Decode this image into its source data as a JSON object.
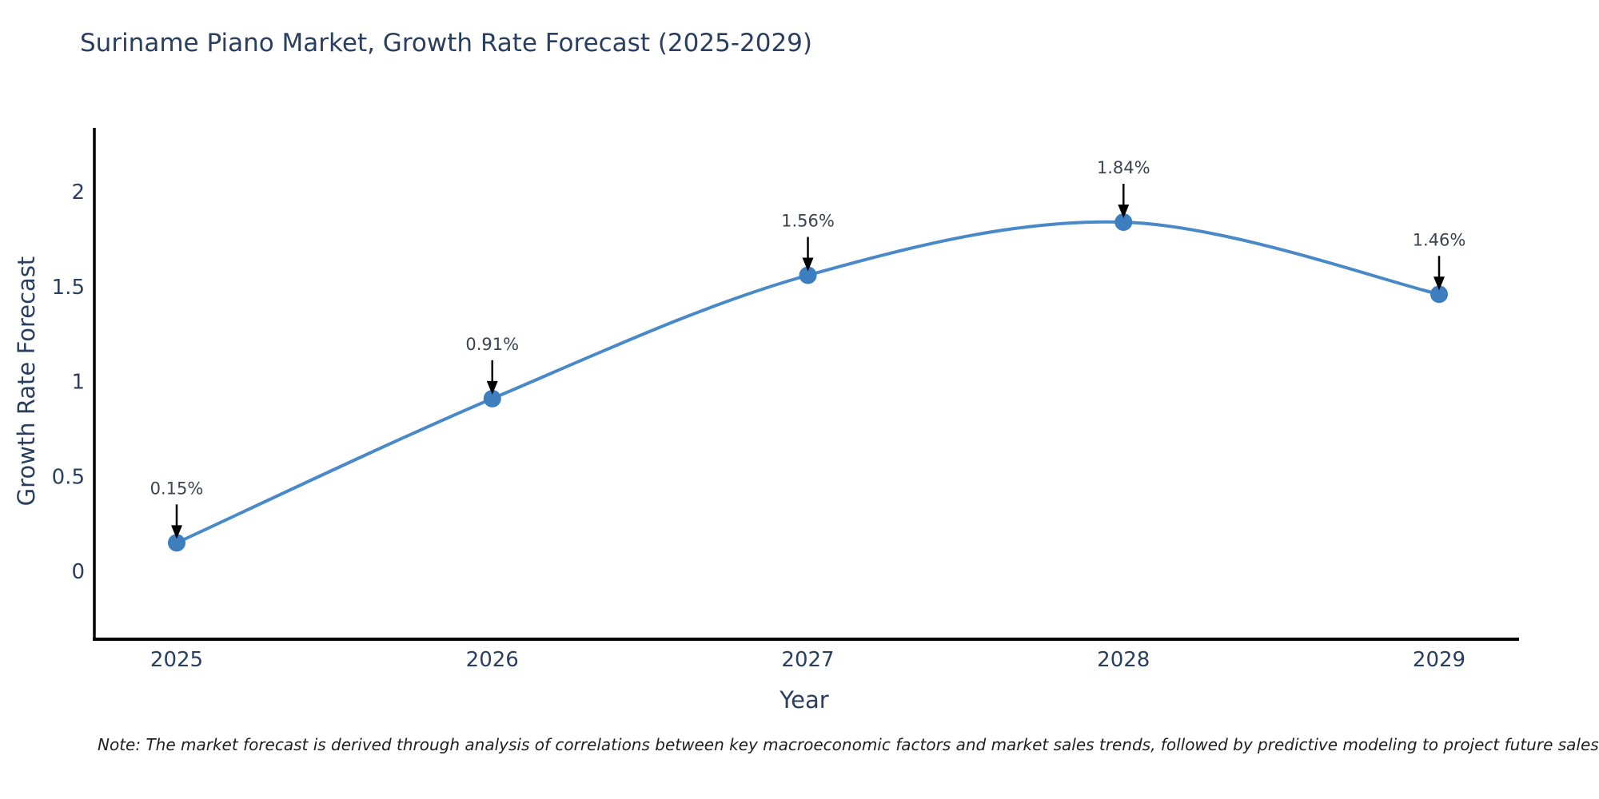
{
  "title": "Suriname Piano Market, Growth Rate Forecast (2025-2029)",
  "footnote": "Note: The market forecast is derived through analysis of correlations between key macroeconomic factors and market sales trends, followed by predictive modeling to project future sales",
  "colors": {
    "line": "#4a89c8",
    "marker": "#3d7ebf",
    "axis": "#000000",
    "title_text": "#2a3f5f",
    "tick_text": "#2a3f5f",
    "annotation_text": "#3b4350",
    "annotation_arrow": "#000000",
    "background": "#ffffff"
  },
  "chart_data": {
    "type": "line",
    "title": "Suriname Piano Market, Growth Rate Forecast (2025-2029)",
    "categories": [
      "2025",
      "2026",
      "2027",
      "2028",
      "2029"
    ],
    "values": [
      0.15,
      0.91,
      1.56,
      1.84,
      1.46
    ],
    "point_labels": [
      "0.15%",
      "0.91%",
      "1.56%",
      "1.84%",
      "1.46%"
    ],
    "xlabel": "Year",
    "ylabel": "Growth Rate Forecast",
    "ytick_labels": [
      "0",
      "0.5",
      "1",
      "1.5",
      "2"
    ],
    "ytick_values": [
      0,
      0.5,
      1,
      1.5,
      2
    ],
    "ylim": [
      -0.36,
      2.34
    ],
    "grid": false,
    "legend": false,
    "line_shape": "spline",
    "marker": "circle"
  }
}
